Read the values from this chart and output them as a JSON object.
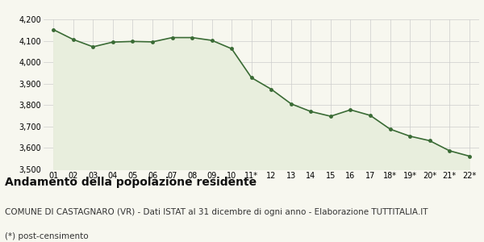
{
  "x_labels": [
    "01",
    "02",
    "03",
    "04",
    "05",
    "06",
    "07",
    "08",
    "09",
    "10",
    "11*",
    "12",
    "13",
    "14",
    "15",
    "16",
    "17",
    "18*",
    "19*",
    "20*",
    "21*",
    "22*"
  ],
  "values": [
    4152,
    4106,
    4072,
    4094,
    4097,
    4095,
    4115,
    4115,
    4102,
    4063,
    3928,
    3874,
    3806,
    3770,
    3748,
    3778,
    3752,
    3688,
    3655,
    3634,
    3587,
    3562
  ],
  "line_color": "#3a6b35",
  "fill_color": "#e8eedd",
  "marker_color": "#3a6b35",
  "background_color": "#f7f7ef",
  "grid_color": "#cccccc",
  "ylim": [
    3500,
    4200
  ],
  "yticks": [
    3500,
    3600,
    3700,
    3800,
    3900,
    4000,
    4100,
    4200
  ],
  "title": "Andamento della popolazione residente",
  "subtitle": "COMUNE DI CASTAGNARO (VR) - Dati ISTAT al 31 dicembre di ogni anno - Elaborazione TUTTITALIA.IT",
  "footnote": "(*) post-censimento",
  "title_fontsize": 10,
  "subtitle_fontsize": 7.5,
  "footnote_fontsize": 7.5
}
